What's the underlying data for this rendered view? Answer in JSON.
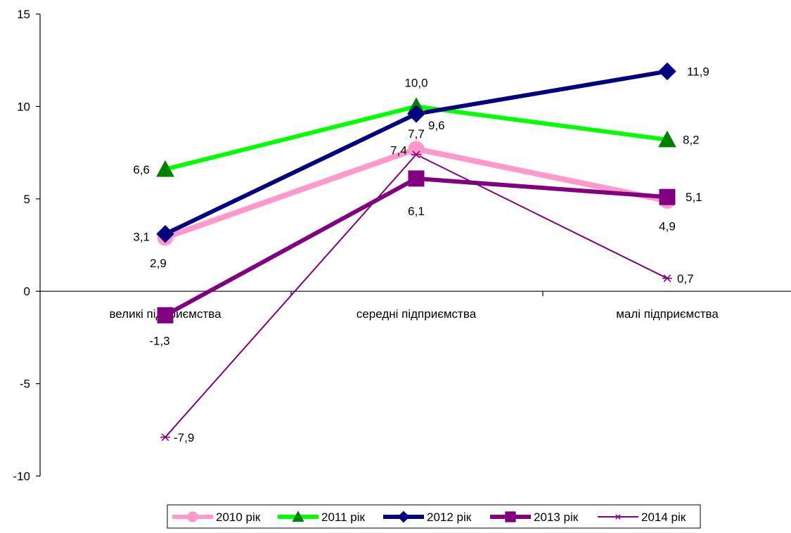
{
  "chart_data": {
    "type": "line",
    "title": "",
    "xlabel": "",
    "ylabel": "",
    "categories": [
      "великі підприємства",
      "середні підприємства",
      "малі підприємства"
    ],
    "ylim": [
      -10,
      15
    ],
    "yticks": [
      "15",
      "10",
      "5",
      "0",
      "-5",
      "-10"
    ],
    "ytick_values": [
      15,
      10,
      5,
      0,
      -5,
      -10
    ],
    "grid": false,
    "legend_position": "bottom",
    "series": [
      {
        "name": "2010 рік",
        "values": [
          2.9,
          7.7,
          4.9
        ],
        "labels": [
          "2,9",
          "7,7",
          "4,9"
        ],
        "color": "#ff99cc",
        "marker": "circle"
      },
      {
        "name": "2011 рік",
        "values": [
          6.6,
          10.0,
          8.2
        ],
        "labels": [
          "6,6",
          "10,0",
          "8,2"
        ],
        "color": "#00ff00",
        "marker_color": "#008000",
        "marker": "triangle"
      },
      {
        "name": "2012 рік",
        "values": [
          3.1,
          9.6,
          11.9
        ],
        "labels": [
          "3,1",
          "9,6",
          "11,9"
        ],
        "color": "#000080",
        "marker": "diamond"
      },
      {
        "name": "2013 рік",
        "values": [
          -1.3,
          6.1,
          5.1
        ],
        "labels": [
          "-1,3",
          "6,1",
          "5,1"
        ],
        "color": "#800080",
        "marker": "square"
      },
      {
        "name": "2014 рік",
        "values": [
          -7.9,
          7.4,
          0.7
        ],
        "labels": [
          "-7,9",
          "7,4",
          "0,7"
        ],
        "color": "#800080",
        "marker": "star"
      }
    ]
  }
}
